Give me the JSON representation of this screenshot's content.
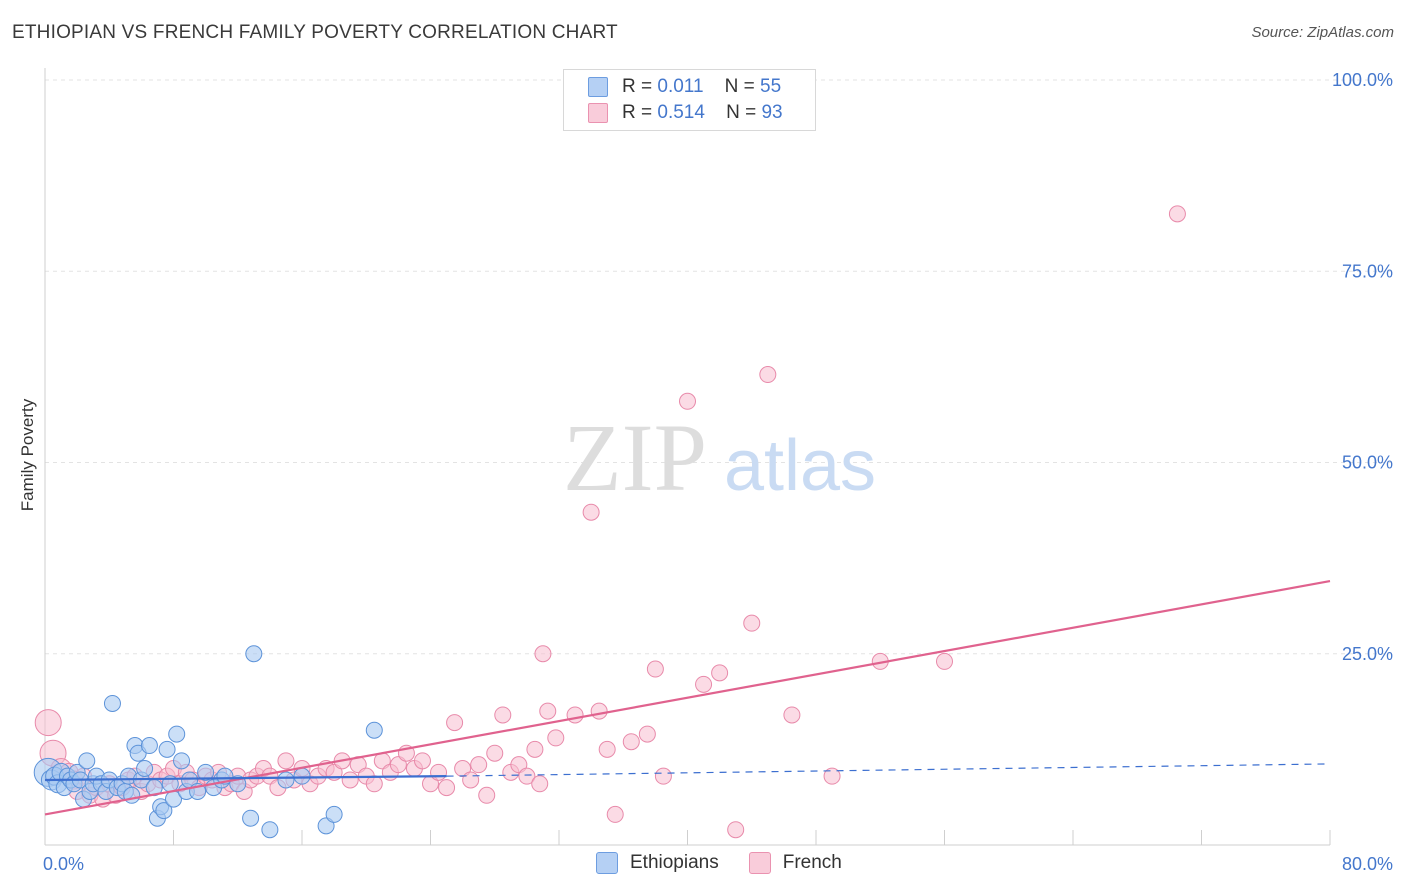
{
  "header": {
    "title": "ETHIOPIAN VS FRENCH FAMILY POVERTY CORRELATION CHART",
    "source": "Source: ZipAtlas.com"
  },
  "legend_top": {
    "rows": [
      {
        "r_label": "R =",
        "r_value": "0.011",
        "n_label": "N =",
        "n_value": "55"
      },
      {
        "r_label": "R =",
        "r_value": "0.514",
        "n_label": "N =",
        "n_value": "93"
      }
    ]
  },
  "legend_bottom": {
    "items": [
      {
        "label": "Ethiopians"
      },
      {
        "label": "French"
      }
    ]
  },
  "watermark": {
    "zip": "ZIP",
    "atlas": "atlas"
  },
  "colors": {
    "ethiopian_fill": "#a9c9f2",
    "ethiopian_stroke": "#5d93d9",
    "ethiopian_line": "#3c6fd0",
    "french_fill": "#f7bdd0",
    "french_stroke": "#e88aaa",
    "french_line": "#e0628e",
    "tick_label": "#4477cc",
    "grid": "#e3e3e3"
  },
  "chart_data": {
    "type": "scatter",
    "title": "ETHIOPIAN VS FRENCH FAMILY POVERTY CORRELATION CHART",
    "xlabel": "",
    "ylabel": "Family Poverty",
    "xlim": [
      0,
      80
    ],
    "ylim": [
      0,
      105
    ],
    "x_tick_labels": [
      {
        "value": 0,
        "label": "0.0%"
      },
      {
        "value": 80,
        "label": "80.0%"
      }
    ],
    "y_tick_labels": [
      {
        "value": 25,
        "label": "25.0%"
      },
      {
        "value": 50,
        "label": "50.0%"
      },
      {
        "value": 75,
        "label": "75.0%"
      },
      {
        "value": 100,
        "label": "100.0%"
      }
    ],
    "series": [
      {
        "name": "Ethiopians",
        "r": 0.011,
        "n": 55,
        "trend": {
          "x0": 0,
          "y0": 8.5,
          "x1": 25,
          "y1": 9.0,
          "dashed_to": 80
        },
        "points": [
          [
            0.2,
            9.5,
            14
          ],
          [
            0.4,
            8.5,
            10
          ],
          [
            0.6,
            9.0,
            9
          ],
          [
            0.8,
            8.0,
            9
          ],
          [
            1.0,
            9.5,
            9
          ],
          [
            1.2,
            7.5,
            8
          ],
          [
            1.4,
            9.0,
            8
          ],
          [
            1.6,
            8.5,
            8
          ],
          [
            1.8,
            8.0,
            8
          ],
          [
            2.0,
            9.5,
            8
          ],
          [
            2.2,
            8.5,
            8
          ],
          [
            2.4,
            6.0,
            8
          ],
          [
            2.6,
            11.0,
            8
          ],
          [
            2.8,
            7.0,
            8
          ],
          [
            3.0,
            8.0,
            8
          ],
          [
            3.2,
            9.0,
            8
          ],
          [
            3.5,
            8.0,
            8
          ],
          [
            3.8,
            7.0,
            8
          ],
          [
            4.0,
            8.5,
            8
          ],
          [
            4.2,
            18.5,
            8
          ],
          [
            4.5,
            7.5,
            8
          ],
          [
            4.8,
            8.0,
            8
          ],
          [
            5.0,
            7.0,
            8
          ],
          [
            5.2,
            9.0,
            8
          ],
          [
            5.4,
            6.5,
            8
          ],
          [
            5.6,
            13.0,
            8
          ],
          [
            5.8,
            12.0,
            8
          ],
          [
            6.0,
            8.5,
            8
          ],
          [
            6.2,
            10.0,
            8
          ],
          [
            6.5,
            13.0,
            8
          ],
          [
            6.8,
            7.5,
            8
          ],
          [
            7.0,
            3.5,
            8
          ],
          [
            7.2,
            5.0,
            8
          ],
          [
            7.4,
            4.5,
            8
          ],
          [
            7.6,
            12.5,
            8
          ],
          [
            7.8,
            8.0,
            8
          ],
          [
            8.0,
            6.0,
            8
          ],
          [
            8.2,
            14.5,
            8
          ],
          [
            8.5,
            11.0,
            8
          ],
          [
            8.8,
            7.0,
            8
          ],
          [
            9.0,
            8.5,
            8
          ],
          [
            9.5,
            7.0,
            8
          ],
          [
            10.0,
            9.5,
            8
          ],
          [
            10.5,
            7.5,
            8
          ],
          [
            11.0,
            8.5,
            8
          ],
          [
            11.2,
            9.0,
            8
          ],
          [
            12.0,
            8.0,
            8
          ],
          [
            12.8,
            3.5,
            8
          ],
          [
            13.0,
            25.0,
            8
          ],
          [
            14.0,
            2.0,
            8
          ],
          [
            15.0,
            8.5,
            8
          ],
          [
            16.0,
            9.0,
            8
          ],
          [
            17.5,
            2.5,
            8
          ],
          [
            18.0,
            4.0,
            8
          ],
          [
            20.5,
            15.0,
            8
          ]
        ]
      },
      {
        "name": "French",
        "r": 0.514,
        "n": 93,
        "trend": {
          "x0": 0,
          "y0": 4.0,
          "x1": 80,
          "y1": 34.5
        },
        "points": [
          [
            0.2,
            16.0,
            13
          ],
          [
            0.5,
            12.0,
            13
          ],
          [
            1.0,
            10.0,
            10
          ],
          [
            1.5,
            9.5,
            9
          ],
          [
            1.8,
            8.5,
            9
          ],
          [
            2.0,
            7.0,
            8
          ],
          [
            2.4,
            9.0,
            8
          ],
          [
            2.8,
            6.5,
            8
          ],
          [
            3.2,
            7.5,
            8
          ],
          [
            3.6,
            6.0,
            8
          ],
          [
            4.0,
            8.0,
            8
          ],
          [
            4.4,
            6.5,
            8
          ],
          [
            4.8,
            7.5,
            8
          ],
          [
            5.2,
            8.5,
            8
          ],
          [
            5.6,
            9.0,
            8
          ],
          [
            6.0,
            7.0,
            8
          ],
          [
            6.4,
            8.0,
            8
          ],
          [
            6.8,
            9.5,
            8
          ],
          [
            7.2,
            8.5,
            8
          ],
          [
            7.6,
            9.0,
            8
          ],
          [
            8.0,
            10.0,
            8
          ],
          [
            8.4,
            8.0,
            8
          ],
          [
            8.8,
            9.5,
            8
          ],
          [
            9.2,
            8.5,
            8
          ],
          [
            9.6,
            7.5,
            8
          ],
          [
            10.0,
            9.0,
            8
          ],
          [
            10.4,
            8.5,
            8
          ],
          [
            10.8,
            9.5,
            8
          ],
          [
            11.2,
            7.5,
            8
          ],
          [
            11.6,
            8.0,
            8
          ],
          [
            12.0,
            9.0,
            8
          ],
          [
            12.4,
            7.0,
            8
          ],
          [
            12.8,
            8.5,
            8
          ],
          [
            13.2,
            9.0,
            8
          ],
          [
            13.6,
            10.0,
            8
          ],
          [
            14.0,
            9.0,
            8
          ],
          [
            14.5,
            7.5,
            8
          ],
          [
            15.0,
            11.0,
            8
          ],
          [
            15.5,
            8.5,
            8
          ],
          [
            16.0,
            10.0,
            8
          ],
          [
            16.5,
            8.0,
            8
          ],
          [
            17.0,
            9.0,
            8
          ],
          [
            17.5,
            10.0,
            8
          ],
          [
            18.0,
            9.5,
            8
          ],
          [
            18.5,
            11.0,
            8
          ],
          [
            19.0,
            8.5,
            8
          ],
          [
            19.5,
            10.5,
            8
          ],
          [
            20.0,
            9.0,
            8
          ],
          [
            20.5,
            8.0,
            8
          ],
          [
            21.0,
            11.0,
            8
          ],
          [
            21.5,
            9.5,
            8
          ],
          [
            22.0,
            10.5,
            8
          ],
          [
            22.5,
            12.0,
            8
          ],
          [
            23.0,
            10.0,
            8
          ],
          [
            23.5,
            11.0,
            8
          ],
          [
            24.0,
            8.0,
            8
          ],
          [
            24.5,
            9.5,
            8
          ],
          [
            25.0,
            7.5,
            8
          ],
          [
            25.5,
            16.0,
            8
          ],
          [
            26.0,
            10.0,
            8
          ],
          [
            26.5,
            8.5,
            8
          ],
          [
            27.0,
            10.5,
            8
          ],
          [
            27.5,
            6.5,
            8
          ],
          [
            28.0,
            12.0,
            8
          ],
          [
            28.5,
            17.0,
            8
          ],
          [
            29.0,
            9.5,
            8
          ],
          [
            29.5,
            10.5,
            8
          ],
          [
            30.0,
            9.0,
            8
          ],
          [
            30.5,
            12.5,
            8
          ],
          [
            30.8,
            8.0,
            8
          ],
          [
            31.0,
            25.0,
            8
          ],
          [
            31.3,
            17.5,
            8
          ],
          [
            31.8,
            14.0,
            8
          ],
          [
            33.0,
            17.0,
            8
          ],
          [
            34.0,
            43.5,
            8
          ],
          [
            34.5,
            17.5,
            8
          ],
          [
            35.0,
            12.5,
            8
          ],
          [
            35.5,
            4.0,
            8
          ],
          [
            36.5,
            13.5,
            8
          ],
          [
            37.5,
            14.5,
            8
          ],
          [
            38.0,
            23.0,
            8
          ],
          [
            38.5,
            9.0,
            8
          ],
          [
            40.0,
            58.0,
            8
          ],
          [
            41.0,
            21.0,
            8
          ],
          [
            42.0,
            22.5,
            8
          ],
          [
            43.0,
            2.0,
            8
          ],
          [
            44.0,
            29.0,
            8
          ],
          [
            45.0,
            61.5,
            8
          ],
          [
            46.5,
            17.0,
            8
          ],
          [
            49.0,
            9.0,
            8
          ],
          [
            52.0,
            24.0,
            8
          ],
          [
            56.0,
            24.0,
            8
          ],
          [
            70.5,
            82.5,
            8
          ]
        ]
      }
    ]
  }
}
